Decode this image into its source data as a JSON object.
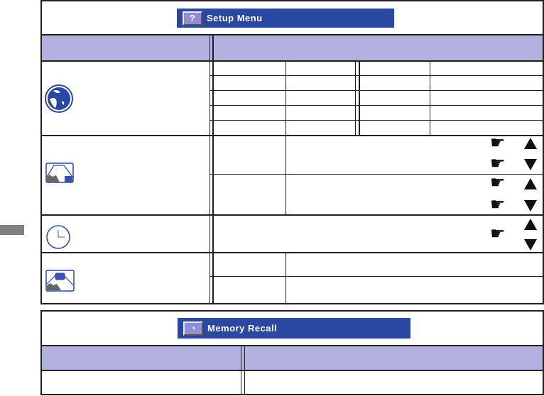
{
  "setup_menu": {
    "title": "Setup Menu",
    "title_icon": "question-icon"
  },
  "memory_recall": {
    "title": "Memory Recall",
    "title_icon": "recall-icon"
  },
  "icons": [
    "globe-icon",
    "image-position-icon",
    "clock-icon",
    "osd-position-icon",
    "pointing-hand-icon",
    "arrow-up-icon",
    "arrow-down-icon"
  ],
  "colors": {
    "title_bar": "#2a47a1",
    "header_row": "#b3b1df",
    "side_tab": "#808080"
  }
}
